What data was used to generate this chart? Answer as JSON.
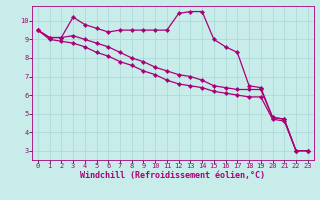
{
  "xlabel": "Windchill (Refroidissement éolien,°C)",
  "xlim": [
    -0.5,
    23.5
  ],
  "ylim": [
    2.5,
    10.8
  ],
  "yticks": [
    3,
    4,
    5,
    6,
    7,
    8,
    9,
    10
  ],
  "xticks": [
    0,
    1,
    2,
    3,
    4,
    5,
    6,
    7,
    8,
    9,
    10,
    11,
    12,
    13,
    14,
    15,
    16,
    17,
    18,
    19,
    20,
    21,
    22,
    23
  ],
  "background_color": "#c8ecea",
  "grid_color": "#a8d8d8",
  "line_color": "#aa0077",
  "line1_x": [
    0,
    1,
    2,
    3,
    4,
    5,
    6,
    7,
    8,
    9,
    10,
    11,
    12,
    13,
    14,
    15,
    16,
    17,
    18,
    19,
    20,
    21,
    22,
    23
  ],
  "line1_y": [
    9.5,
    9.1,
    9.1,
    10.2,
    9.8,
    9.6,
    9.4,
    9.5,
    9.5,
    9.5,
    9.5,
    9.5,
    10.4,
    10.5,
    10.5,
    9.0,
    8.6,
    8.3,
    6.5,
    6.4,
    4.8,
    4.7,
    3.0,
    3.0
  ],
  "line2_x": [
    0,
    1,
    2,
    3,
    4,
    5,
    6,
    7,
    8,
    9,
    10,
    11,
    12,
    13,
    14,
    15,
    16,
    17,
    18,
    19,
    20,
    21,
    22,
    23
  ],
  "line2_y": [
    9.5,
    9.1,
    9.1,
    9.2,
    9.0,
    8.8,
    8.6,
    8.3,
    8.0,
    7.8,
    7.5,
    7.3,
    7.1,
    7.0,
    6.8,
    6.5,
    6.4,
    6.3,
    6.3,
    6.3,
    4.8,
    4.7,
    3.0,
    3.0
  ],
  "line3_x": [
    0,
    1,
    2,
    3,
    4,
    5,
    6,
    7,
    8,
    9,
    10,
    11,
    12,
    13,
    14,
    15,
    16,
    17,
    18,
    19,
    20,
    21,
    22,
    23
  ],
  "line3_y": [
    9.5,
    9.0,
    8.9,
    8.8,
    8.6,
    8.3,
    8.1,
    7.8,
    7.6,
    7.3,
    7.1,
    6.8,
    6.6,
    6.5,
    6.4,
    6.2,
    6.1,
    6.0,
    5.9,
    5.9,
    4.7,
    4.6,
    3.0,
    3.0
  ],
  "marker": "D",
  "markersize": 2.2,
  "linewidth": 0.9,
  "tick_fontsize": 5.0,
  "xlabel_fontsize": 6.0,
  "xlabel_fontweight": "bold"
}
